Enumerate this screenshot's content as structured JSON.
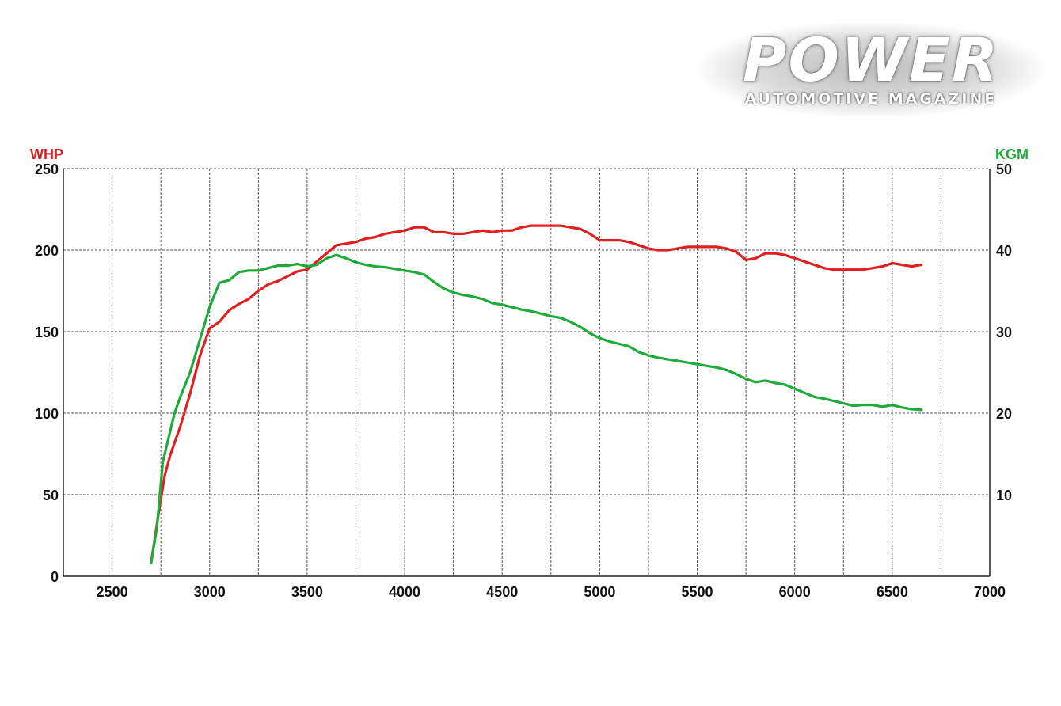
{
  "logo": {
    "title": "POWER",
    "subtitle": "AUTOMOTIVE MAGAZINE"
  },
  "chart_data": {
    "type": "line",
    "ylabel": "WHP",
    "y2label": "KGM",
    "xlim": [
      2250,
      7000
    ],
    "ylim": [
      0,
      250
    ],
    "y2lim": [
      0,
      50
    ],
    "xticks": [
      2500,
      3000,
      3500,
      4000,
      4500,
      5000,
      5500,
      6000,
      6500,
      7000
    ],
    "xtick_labels": [
      "2500",
      "3000",
      "3500",
      "4000",
      "4500",
      "5000",
      "5500",
      "6000",
      "6500",
      "7000"
    ],
    "yticks": [
      0,
      50,
      100,
      150,
      200,
      250
    ],
    "ytick_labels": [
      "0",
      "50",
      "100",
      "150",
      "200",
      "250"
    ],
    "y2ticks": [
      10,
      20,
      30,
      40,
      50
    ],
    "y2tick_labels": [
      "10",
      "20",
      "30",
      "40",
      "50"
    ],
    "grid": true,
    "colors": {
      "whp": "#e02020",
      "kgm": "#1faa3a",
      "grid": "#555555"
    },
    "series": [
      {
        "axis": "left",
        "color": "#e02020",
        "x": [
          2700,
          2740,
          2770,
          2800,
          2850,
          2900,
          2950,
          3000,
          3050,
          3100,
          3150,
          3200,
          3250,
          3300,
          3350,
          3400,
          3450,
          3500,
          3550,
          3600,
          3650,
          3700,
          3750,
          3800,
          3850,
          3900,
          3950,
          4000,
          4050,
          4100,
          4150,
          4200,
          4250,
          4300,
          4350,
          4400,
          4450,
          4500,
          4550,
          4600,
          4650,
          4700,
          4750,
          4800,
          4850,
          4900,
          4950,
          5000,
          5050,
          5100,
          5150,
          5200,
          5250,
          5300,
          5350,
          5400,
          5450,
          5500,
          5550,
          5600,
          5650,
          5700,
          5750,
          5800,
          5850,
          5900,
          5950,
          6000,
          6050,
          6100,
          6150,
          6200,
          6250,
          6300,
          6350,
          6400,
          6450,
          6500,
          6550,
          6600,
          6650
        ],
        "values": [
          8,
          40,
          62,
          75,
          92,
          112,
          135,
          152,
          156,
          163,
          167,
          170,
          175,
          179,
          181,
          184,
          187,
          188,
          193,
          198,
          203,
          204,
          205,
          207,
          208,
          210,
          211,
          212,
          214,
          214,
          211,
          211,
          210,
          210,
          211,
          212,
          211,
          212,
          212,
          214,
          215,
          215,
          215,
          215,
          214,
          213,
          210,
          206,
          206,
          206,
          205,
          203,
          201,
          200,
          200,
          201,
          202,
          202,
          202,
          202,
          201,
          199,
          194,
          195,
          198,
          198,
          197,
          195,
          193,
          191,
          189,
          188,
          188,
          188,
          188,
          189,
          190,
          192,
          191,
          190,
          191
        ]
      },
      {
        "axis": "right",
        "color": "#1faa3a",
        "x": [
          2700,
          2730,
          2760,
          2790,
          2820,
          2850,
          2900,
          2950,
          3000,
          3050,
          3100,
          3150,
          3200,
          3250,
          3300,
          3350,
          3400,
          3450,
          3500,
          3550,
          3600,
          3650,
          3700,
          3750,
          3800,
          3850,
          3900,
          3950,
          4000,
          4050,
          4100,
          4150,
          4200,
          4250,
          4300,
          4350,
          4400,
          4450,
          4500,
          4550,
          4600,
          4650,
          4700,
          4750,
          4800,
          4850,
          4900,
          4950,
          5000,
          5050,
          5100,
          5150,
          5200,
          5250,
          5300,
          5350,
          5400,
          5450,
          5500,
          5550,
          5600,
          5650,
          5700,
          5750,
          5800,
          5850,
          5900,
          5950,
          6000,
          6050,
          6100,
          6150,
          6200,
          6250,
          6300,
          6350,
          6400,
          6450,
          6500,
          6550,
          6600,
          6650
        ],
        "values": [
          1.6,
          6,
          14,
          17,
          20,
          22,
          25,
          29,
          33,
          36,
          36.3,
          37.3,
          37.5,
          37.5,
          37.8,
          38.1,
          38.1,
          38.3,
          38.0,
          38.2,
          39.0,
          39.4,
          39.0,
          38.5,
          38.2,
          38.0,
          37.9,
          37.7,
          37.5,
          37.3,
          37.0,
          36.1,
          35.3,
          34.8,
          34.5,
          34.3,
          34.0,
          33.5,
          33.3,
          33.0,
          32.7,
          32.5,
          32.2,
          31.9,
          31.7,
          31.2,
          30.6,
          29.8,
          29.2,
          28.8,
          28.5,
          28.2,
          27.5,
          27.1,
          26.8,
          26.6,
          26.4,
          26.2,
          26.0,
          25.8,
          25.6,
          25.3,
          24.8,
          24.2,
          23.8,
          24.0,
          23.7,
          23.5,
          23.0,
          22.5,
          22.0,
          21.8,
          21.5,
          21.2,
          20.9,
          21.0,
          21.0,
          20.8,
          21.0,
          20.7,
          20.5,
          20.4
        ]
      }
    ]
  }
}
